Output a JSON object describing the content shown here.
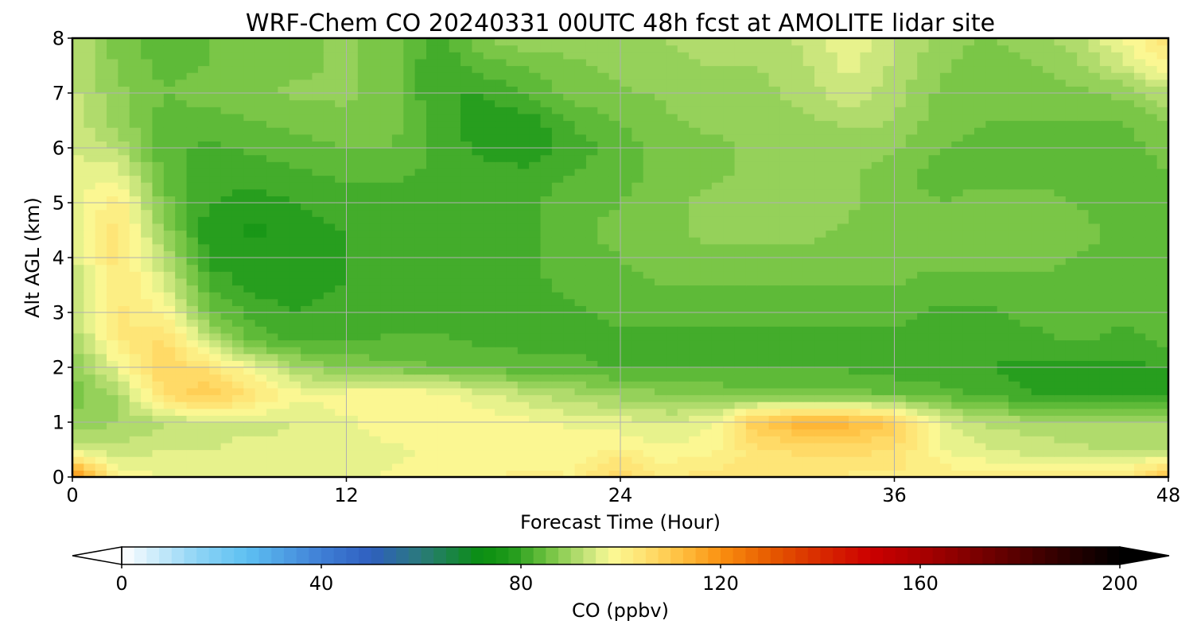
{
  "chart_data": {
    "type": "heatmap",
    "title": "WRF-Chem CO  20240331 00UTC 48h fcst at AMOLITE lidar site",
    "xlabel": "Forecast Time (Hour)",
    "ylabel": "Alt AGL (km)",
    "xlim": [
      0,
      48
    ],
    "ylim": [
      0,
      8
    ],
    "x_ticks": [
      0,
      12,
      24,
      36,
      48
    ],
    "y_ticks": [
      0,
      1,
      2,
      3,
      4,
      5,
      6,
      7,
      8
    ],
    "grid": true,
    "colorbar": {
      "label": "CO  (ppbv)",
      "range": [
        0,
        200
      ],
      "ticks": [
        0,
        40,
        80,
        120,
        160,
        200
      ],
      "extend": "both",
      "stops": [
        {
          "v": 0,
          "c": "#ffffff"
        },
        {
          "v": 15,
          "c": "#8fd4f5"
        },
        {
          "v": 25,
          "c": "#5ec0f2"
        },
        {
          "v": 40,
          "c": "#3f7fd6"
        },
        {
          "v": 50,
          "c": "#2f5fbf"
        },
        {
          "v": 60,
          "c": "#2a7a7a"
        },
        {
          "v": 72,
          "c": "#0a8f10"
        },
        {
          "v": 78,
          "c": "#1f9a1a"
        },
        {
          "v": 85,
          "c": "#6cc13e"
        },
        {
          "v": 92,
          "c": "#b8de72"
        },
        {
          "v": 98,
          "c": "#fafa96"
        },
        {
          "v": 105,
          "c": "#ffe070"
        },
        {
          "v": 112,
          "c": "#ffc040"
        },
        {
          "v": 120,
          "c": "#fa9010"
        },
        {
          "v": 130,
          "c": "#e65a00"
        },
        {
          "v": 140,
          "c": "#d82a00"
        },
        {
          "v": 150,
          "c": "#cc0000"
        },
        {
          "v": 162,
          "c": "#a30000"
        },
        {
          "v": 175,
          "c": "#6b0000"
        },
        {
          "v": 188,
          "c": "#300000"
        },
        {
          "v": 200,
          "c": "#000000"
        }
      ]
    },
    "times": [
      0,
      2,
      4,
      6,
      8,
      10,
      12,
      14,
      16,
      18,
      20,
      22,
      24,
      26,
      28,
      30,
      32,
      34,
      36,
      38,
      40,
      42,
      44,
      46,
      48
    ],
    "altitudes": [
      0,
      0.5,
      1,
      1.5,
      2,
      2.5,
      3,
      3.5,
      4,
      4.5,
      5,
      5.5,
      6,
      6.5,
      7,
      7.5,
      8
    ],
    "values": [
      [
        122,
        100,
        97,
        96,
        96,
        96,
        97,
        98,
        98,
        99,
        101,
        100,
        108,
        102,
        104,
        103,
        102,
        102,
        102,
        102,
        101,
        101,
        101,
        102,
        112
      ],
      [
        95,
        93,
        95,
        95,
        96,
        96,
        95,
        97,
        98,
        99,
        98,
        99,
        100,
        98,
        99,
        104,
        106,
        106,
        105,
        98,
        95,
        94,
        93,
        92,
        92
      ],
      [
        88,
        90,
        92,
        94,
        94,
        95,
        97,
        99,
        99,
        99,
        98,
        97,
        96,
        95,
        97,
        110,
        114,
        114,
        109,
        96,
        92,
        91,
        90,
        90,
        90
      ],
      [
        86,
        90,
        105,
        110,
        104,
        98,
        99,
        100,
        99,
        96,
        93,
        91,
        89,
        88,
        87,
        86,
        86,
        86,
        85,
        84,
        82,
        80,
        79,
        79,
        80
      ],
      [
        87,
        97,
        108,
        104,
        97,
        90,
        87,
        86,
        85,
        84,
        83,
        83,
        82,
        82,
        82,
        82,
        82,
        82,
        81,
        80,
        80,
        79,
        79,
        79,
        80
      ],
      [
        90,
        102,
        106,
        92,
        84,
        82,
        82,
        83,
        83,
        82,
        82,
        82,
        82,
        82,
        82,
        82,
        82,
        82,
        82,
        82,
        82,
        82,
        83,
        82,
        83
      ],
      [
        93,
        103,
        100,
        86,
        81,
        80,
        81,
        81,
        81,
        82,
        82,
        82,
        83,
        83,
        83,
        83,
        83,
        83,
        83,
        82,
        82,
        83,
        83,
        83,
        83
      ],
      [
        93,
        103,
        96,
        82,
        79,
        79,
        80,
        80,
        81,
        82,
        82,
        83,
        84,
        85,
        85,
        85,
        85,
        85,
        85,
        84,
        84,
        84,
        84,
        84,
        84
      ],
      [
        94,
        104,
        92,
        79,
        78,
        79,
        80,
        80,
        81,
        82,
        82,
        84,
        85,
        86,
        87,
        87,
        87,
        87,
        86,
        86,
        86,
        86,
        85,
        84,
        85
      ],
      [
        95,
        104,
        89,
        78,
        77,
        79,
        80,
        81,
        81,
        82,
        82,
        84,
        86,
        87,
        88,
        88,
        88,
        87,
        86,
        86,
        87,
        87,
        86,
        84,
        85
      ],
      [
        96,
        102,
        86,
        80,
        79,
        80,
        81,
        81,
        82,
        82,
        82,
        84,
        85,
        87,
        88,
        89,
        89,
        88,
        86,
        85,
        86,
        86,
        85,
        83,
        84
      ],
      [
        96,
        97,
        84,
        81,
        81,
        82,
        83,
        83,
        82,
        81,
        81,
        83,
        84,
        86,
        87,
        88,
        88,
        88,
        86,
        84,
        84,
        84,
        84,
        83,
        85
      ],
      [
        95,
        92,
        83,
        82,
        83,
        84,
        85,
        85,
        82,
        79,
        78,
        81,
        84,
        86,
        87,
        88,
        88,
        88,
        88,
        85,
        84,
        84,
        84,
        84,
        86
      ],
      [
        94,
        89,
        84,
        84,
        85,
        86,
        87,
        86,
        82,
        78,
        79,
        83,
        85,
        87,
        88,
        88,
        89,
        91,
        90,
        86,
        85,
        85,
        85,
        85,
        88
      ],
      [
        93,
        88,
        85,
        86,
        87,
        88,
        88,
        86,
        80,
        80,
        83,
        86,
        87,
        88,
        89,
        89,
        91,
        94,
        91,
        87,
        86,
        86,
        87,
        88,
        92
      ],
      [
        93,
        87,
        84,
        85,
        86,
        87,
        88,
        86,
        80,
        84,
        85,
        87,
        88,
        89,
        90,
        90,
        92,
        96,
        92,
        88,
        86,
        87,
        89,
        94,
        100
      ],
      [
        93,
        86,
        84,
        85,
        86,
        87,
        88,
        86,
        82,
        87,
        90,
        89,
        89,
        90,
        91,
        90,
        93,
        97,
        93,
        89,
        87,
        89,
        92,
        98,
        104
      ]
    ]
  }
}
